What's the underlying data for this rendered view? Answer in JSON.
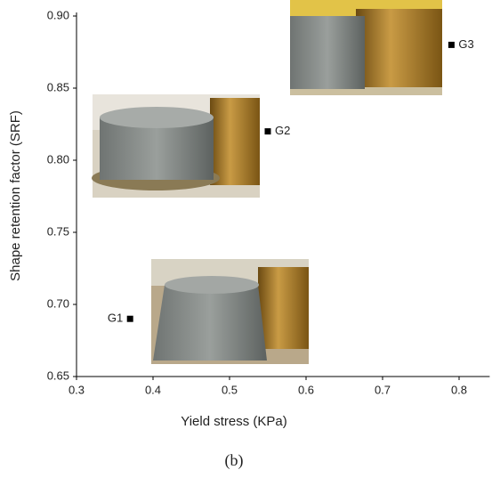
{
  "chart_data": {
    "type": "scatter",
    "x_label": "Yield stress (KPa)",
    "y_label": "Shape retention factor (SRF)",
    "caption": "(b)",
    "x": [
      0.37,
      0.55,
      0.79
    ],
    "values": [
      0.69,
      0.82,
      0.88
    ],
    "labels": [
      "G1",
      "G2",
      "G3"
    ],
    "color": "#000000",
    "xlim": [
      0.3,
      0.84
    ],
    "xticks": [
      0.3,
      0.4,
      0.5,
      0.6,
      0.7,
      0.8
    ],
    "ylim": [
      0.65,
      0.9
    ],
    "yticks": [
      0.65,
      {
        "value": 0.7,
        "label": "0.70"
      },
      0.75,
      {
        "value": 0.8,
        "label": "0.80"
      },
      0.85,
      {
        "value": 0.9,
        "label": "0.90"
      }
    ]
  }
}
